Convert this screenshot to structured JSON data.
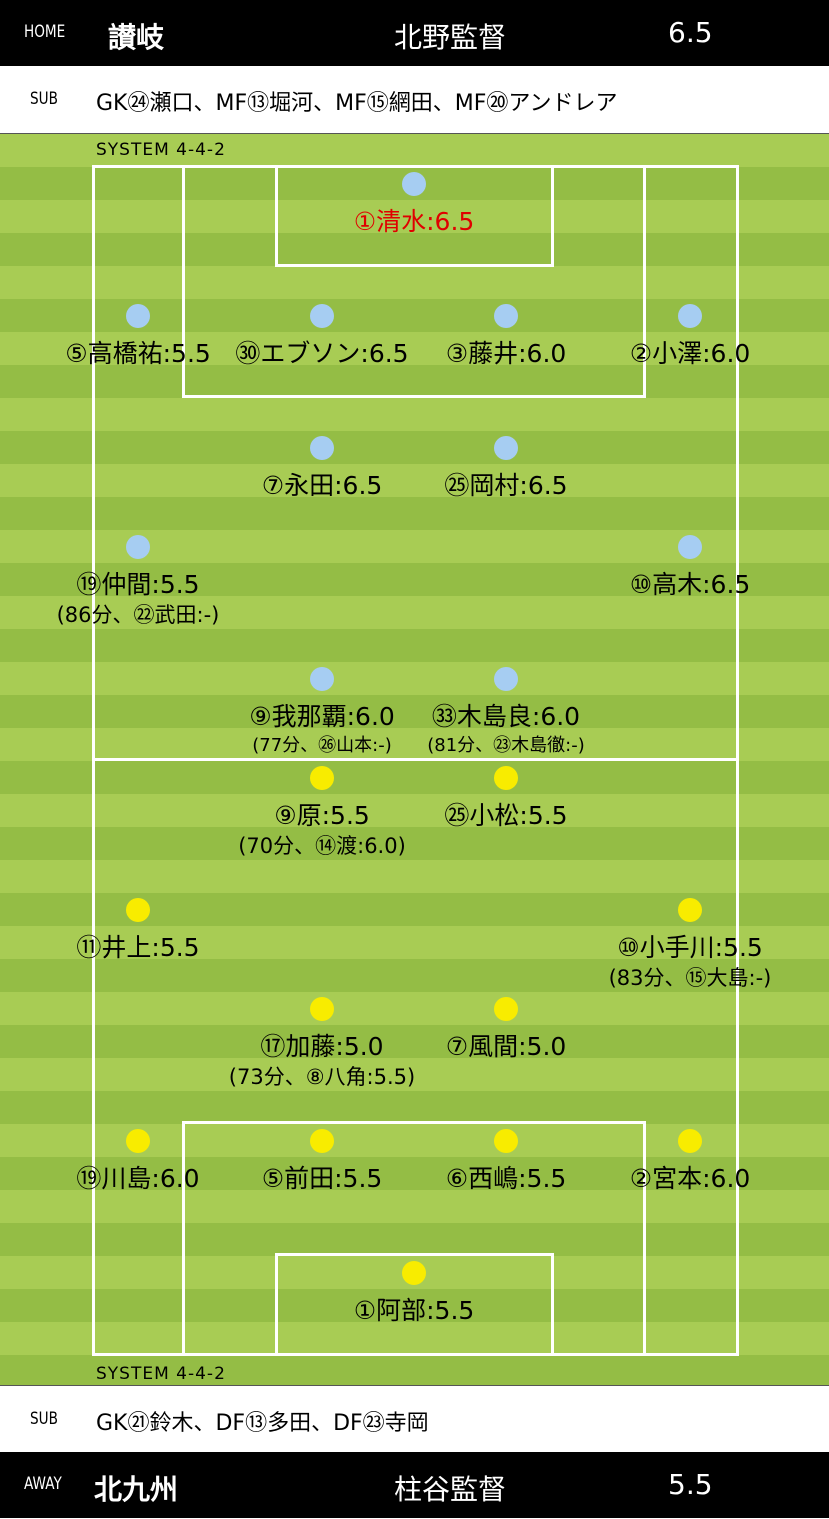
{
  "home": {
    "tag": "HOME",
    "team": "讃岐",
    "coach": "北野監督",
    "score": "6.5",
    "sub_tag": "SUB",
    "subs": "GK㉔瀬口、MF⑬堀河、MF⑮網田、MF⑳アンドレア",
    "system": "SYSTEM  4-4-2",
    "dot_color": "#a6cdf2",
    "players": [
      {
        "label": "①清水:6.5",
        "highlight": true
      },
      {
        "label": "⑤高橋祐:5.5"
      },
      {
        "label": "㉚エブソン:6.5"
      },
      {
        "label": "③藤井:6.0"
      },
      {
        "label": "②小澤:6.0"
      },
      {
        "label": "⑦永田:6.5"
      },
      {
        "label": "㉕岡村:6.5"
      },
      {
        "label": "⑲仲間:5.5",
        "sub": "(86分、㉒武田:-)"
      },
      {
        "label": "⑩高木:6.5"
      },
      {
        "label": "⑨我那覇:6.0",
        "sub": "(77分、㉖山本:-)"
      },
      {
        "label": "㉝木島良:6.0",
        "sub": "(81分、㉓木島徹:-)"
      }
    ]
  },
  "away": {
    "tag": "AWAY",
    "team": "北九州",
    "coach": "柱谷監督",
    "score": "5.5",
    "sub_tag": "SUB",
    "subs": "GK㉑鈴木、DF⑬多田、DF㉓寺岡",
    "system": "SYSTEM  4-4-2",
    "dot_color": "#f8ec00",
    "players": [
      {
        "label": "⑨原:5.5",
        "sub": "(70分、⑭渡:6.0)"
      },
      {
        "label": "㉕小松:5.5"
      },
      {
        "label": "⑪井上:5.5"
      },
      {
        "label": "⑩小手川:5.5",
        "sub": "(83分、⑮大島:-)"
      },
      {
        "label": "⑰加藤:5.0",
        "sub": "(73分、⑧八角:5.5)"
      },
      {
        "label": "⑦風間:5.0"
      },
      {
        "label": "⑲川島:6.0"
      },
      {
        "label": "⑤前田:5.5"
      },
      {
        "label": "⑥西嶋:5.5"
      },
      {
        "label": "②宮本:6.0"
      },
      {
        "label": "①阿部:5.5"
      }
    ]
  }
}
